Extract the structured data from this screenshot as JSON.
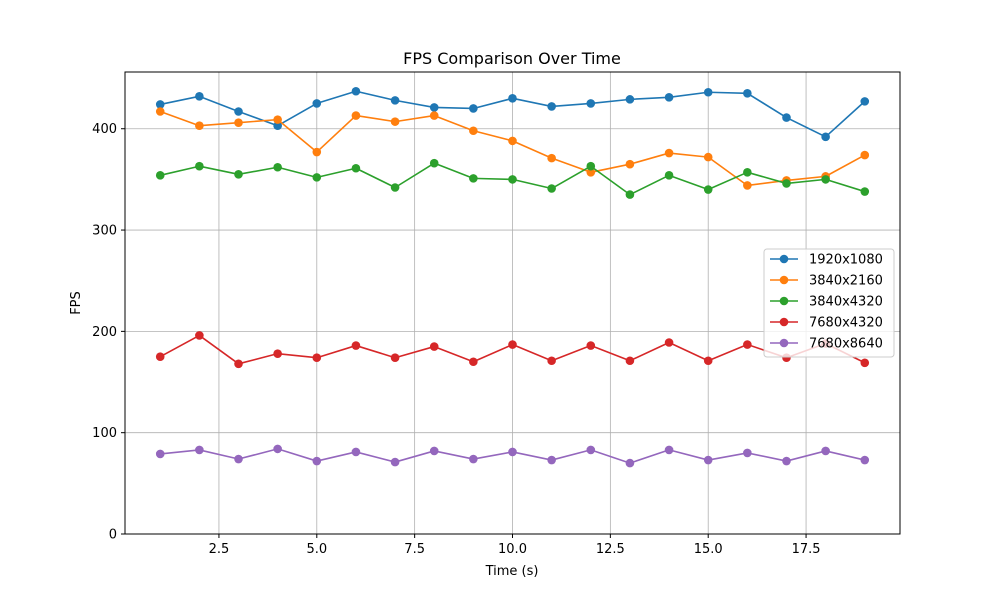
{
  "chart_data": {
    "type": "line",
    "title": "FPS Comparison Over Time",
    "xlabel": "Time (s)",
    "ylabel": "FPS",
    "xlim": [
      0.1,
      19.9
    ],
    "ylim": [
      0,
      456
    ],
    "xticks": [
      2.5,
      5.0,
      7.5,
      10.0,
      12.5,
      15.0,
      17.5
    ],
    "xtick_labels": [
      "2.5",
      "5.0",
      "7.5",
      "10.0",
      "12.5",
      "15.0",
      "17.5"
    ],
    "yticks": [
      0,
      100,
      200,
      300,
      400
    ],
    "ytick_labels": [
      "0",
      "100",
      "200",
      "300",
      "400"
    ],
    "grid": true,
    "legend_position": "center-right",
    "x": [
      1,
      2,
      3,
      4,
      5,
      6,
      7,
      8,
      9,
      10,
      11,
      12,
      13,
      14,
      15,
      16,
      17,
      18,
      19
    ],
    "series": [
      {
        "name": "1920x1080",
        "color": "#1f77b4",
        "values": [
          424,
          432,
          417,
          403,
          425,
          437,
          428,
          421,
          420,
          430,
          422,
          425,
          429,
          431,
          436,
          435,
          411,
          392,
          427
        ]
      },
      {
        "name": "3840x2160",
        "color": "#ff7f0e",
        "values": [
          417,
          403,
          406,
          409,
          377,
          413,
          407,
          413,
          398,
          388,
          371,
          357,
          365,
          376,
          372,
          344,
          349,
          353,
          374
        ]
      },
      {
        "name": "3840x4320",
        "color": "#2ca02c",
        "values": [
          354,
          363,
          355,
          362,
          352,
          361,
          342,
          366,
          351,
          350,
          341,
          363,
          335,
          354,
          340,
          357,
          346,
          350,
          338
        ]
      },
      {
        "name": "7680x4320",
        "color": "#d62728",
        "values": [
          175,
          196,
          168,
          178,
          174,
          186,
          174,
          185,
          170,
          187,
          171,
          186,
          171,
          189,
          171,
          187,
          174,
          188,
          169
        ]
      },
      {
        "name": "7680x8640",
        "color": "#9467bd",
        "values": [
          79,
          83,
          74,
          84,
          72,
          81,
          71,
          82,
          74,
          81,
          73,
          83,
          70,
          83,
          73,
          80,
          72,
          82,
          73
        ]
      }
    ]
  }
}
